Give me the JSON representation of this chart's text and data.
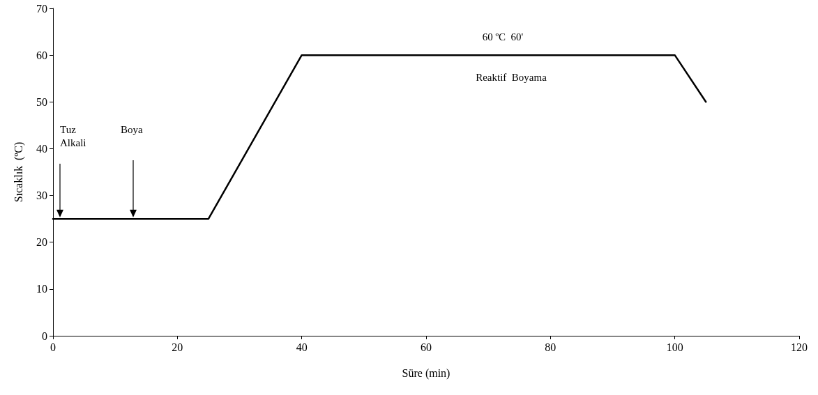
{
  "chart_data": {
    "type": "line",
    "xlabel": "Süre (min)",
    "ylabel": "Sıcaklık  (ºC)",
    "x": [
      0,
      25,
      40,
      100,
      105
    ],
    "series": [
      {
        "color": "#000000",
        "values": [
          25,
          25,
          60,
          60,
          50
        ]
      }
    ],
    "xlim": [
      0,
      120
    ],
    "xticks": [
      0,
      20,
      40,
      60,
      80,
      100,
      120
    ],
    "ylim": [
      0,
      70
    ],
    "yticks": [
      0,
      10,
      20,
      30,
      40,
      50,
      60,
      70
    ],
    "grid": false,
    "marker": "none",
    "line_style": "solid",
    "annotations": [
      "Tuz\nAlkali",
      "Boya",
      "60 ºC  60'",
      "Reaktif  Boyama"
    ]
  }
}
